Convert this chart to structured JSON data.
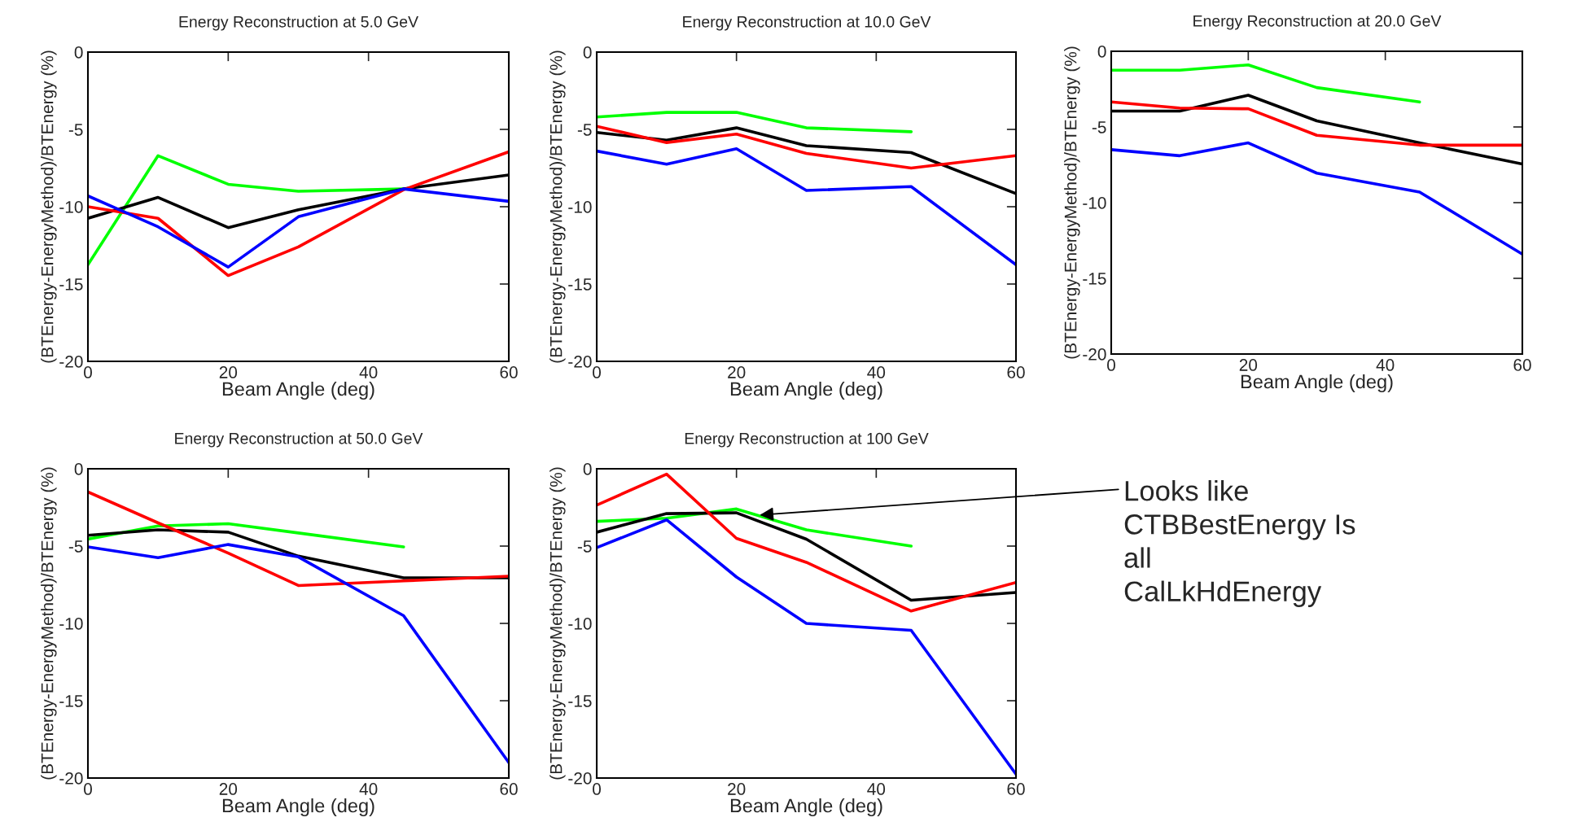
{
  "chart_data": [
    {
      "type": "line",
      "title": "Energy Reconstruction at 5.0 GeV",
      "xlabel": "Beam Angle (deg)",
      "ylabel": "(BTEnergy-EnergyMethod)/BTEnergy (%)",
      "x": [
        0,
        10,
        20,
        30,
        45,
        60
      ],
      "xlim": [
        0,
        60
      ],
      "ylim": [
        -20,
        0
      ],
      "xticks": [
        0,
        20,
        40,
        60
      ],
      "yticks": [
        -20,
        -15,
        -10,
        -5,
        0
      ],
      "grid": false,
      "legend": false,
      "series": [
        {
          "color": "#00ff00",
          "values": [
            -13.75,
            -6.7,
            -8.55,
            -9.0,
            -8.85,
            null
          ]
        },
        {
          "color": "#000000",
          "values": [
            -10.75,
            -9.4,
            -11.35,
            -10.2,
            -8.85,
            -7.95
          ]
        },
        {
          "color": "#ff0000",
          "values": [
            -10.0,
            -10.75,
            -14.45,
            -12.6,
            -8.9,
            -6.45
          ]
        },
        {
          "color": "#0000ff",
          "values": [
            -9.3,
            -11.3,
            -13.9,
            -10.65,
            -8.85,
            -9.65
          ]
        }
      ]
    },
    {
      "type": "line",
      "title": "Energy Reconstruction at 10.0 GeV",
      "xlabel": "Beam Angle (deg)",
      "ylabel": "(BTEnergy-EnergyMethod)/BTEnergy (%)",
      "x": [
        0,
        10,
        20,
        30,
        45,
        60
      ],
      "xlim": [
        0,
        60
      ],
      "ylim": [
        -20,
        0
      ],
      "xticks": [
        0,
        20,
        40,
        60
      ],
      "yticks": [
        -20,
        -15,
        -10,
        -5,
        0
      ],
      "grid": false,
      "legend": false,
      "series": [
        {
          "color": "#00ff00",
          "values": [
            -4.2,
            -3.9,
            -3.9,
            -4.9,
            -5.15,
            null
          ]
        },
        {
          "color": "#000000",
          "values": [
            -5.2,
            -5.7,
            -4.9,
            -6.05,
            -6.5,
            -9.15
          ]
        },
        {
          "color": "#ff0000",
          "values": [
            -4.8,
            -5.85,
            -5.3,
            -6.55,
            -7.5,
            -6.7
          ]
        },
        {
          "color": "#0000ff",
          "values": [
            -6.4,
            -7.25,
            -6.25,
            -8.95,
            -8.7,
            -13.75
          ]
        }
      ]
    },
    {
      "type": "line",
      "title": "Energy Reconstruction at 20.0 GeV",
      "xlabel": "Beam Angle (deg)",
      "ylabel": "(BTEnergy-EnergyMethod)/BTEnergy (%)",
      "x": [
        0,
        10,
        20,
        30,
        45,
        60
      ],
      "xlim": [
        0,
        60
      ],
      "ylim": [
        -20,
        0
      ],
      "xticks": [
        0,
        20,
        40,
        60
      ],
      "yticks": [
        -20,
        -15,
        -10,
        -5,
        0
      ],
      "grid": false,
      "legend": false,
      "series": [
        {
          "color": "#00ff00",
          "values": [
            -1.25,
            -1.25,
            -0.9,
            -2.4,
            -3.35,
            null
          ]
        },
        {
          "color": "#000000",
          "values": [
            -3.95,
            -3.95,
            -2.9,
            -4.6,
            -6.05,
            -7.45
          ]
        },
        {
          "color": "#ff0000",
          "values": [
            -3.35,
            -3.75,
            -3.8,
            -5.55,
            -6.2,
            -6.2
          ]
        },
        {
          "color": "#0000ff",
          "values": [
            -6.5,
            -6.9,
            -6.05,
            -8.05,
            -9.3,
            -13.4
          ]
        }
      ]
    },
    {
      "type": "line",
      "title": "Energy Reconstruction at 50.0 GeV",
      "xlabel": "Beam Angle (deg)",
      "ylabel": "(BTEnergy-EnergyMethod)/BTEnergy (%)",
      "x": [
        0,
        10,
        20,
        30,
        45,
        60
      ],
      "xlim": [
        0,
        60
      ],
      "ylim": [
        -20,
        0
      ],
      "xticks": [
        0,
        20,
        40,
        60
      ],
      "yticks": [
        -20,
        -15,
        -10,
        -5,
        0
      ],
      "grid": false,
      "legend": false,
      "series": [
        {
          "color": "#00ff00",
          "values": [
            -4.55,
            -3.7,
            -3.55,
            -4.15,
            -5.05,
            null
          ]
        },
        {
          "color": "#000000",
          "values": [
            -4.3,
            -3.95,
            -4.1,
            -5.65,
            -7.05,
            -7.05
          ]
        },
        {
          "color": "#ff0000",
          "values": [
            -1.5,
            -3.5,
            -5.45,
            -7.55,
            -7.25,
            -6.95
          ]
        },
        {
          "color": "#0000ff",
          "values": [
            -5.05,
            -5.75,
            -4.9,
            -5.7,
            -9.5,
            -19.0
          ]
        }
      ]
    },
    {
      "type": "line",
      "title": "Energy Reconstruction at 100 GeV",
      "xlabel": "Beam Angle (deg)",
      "ylabel": "(BTEnergy-EnergyMethod)/BTEnergy (%)",
      "x": [
        0,
        10,
        20,
        30,
        45,
        60
      ],
      "xlim": [
        0,
        60
      ],
      "ylim": [
        -20,
        0
      ],
      "xticks": [
        0,
        20,
        40,
        60
      ],
      "yticks": [
        -20,
        -15,
        -10,
        -5,
        0
      ],
      "grid": false,
      "legend": false,
      "series": [
        {
          "color": "#00ff00",
          "values": [
            -3.4,
            -3.2,
            -2.6,
            -3.95,
            -5.0,
            null
          ]
        },
        {
          "color": "#000000",
          "values": [
            -4.1,
            -2.9,
            -2.85,
            -4.55,
            -8.5,
            -8.0
          ]
        },
        {
          "color": "#ff0000",
          "values": [
            -2.35,
            -0.35,
            -4.5,
            -6.05,
            -9.2,
            -7.35
          ]
        },
        {
          "color": "#0000ff",
          "values": [
            -5.1,
            -3.3,
            -7.0,
            -10.0,
            -10.45,
            -19.75
          ]
        }
      ],
      "annotations": [
        {
          "text": "Looks like\nCTBBestEnergy Is\nall\nCalLkHdEnergy",
          "x": 23,
          "y": -3.0
        }
      ]
    }
  ]
}
